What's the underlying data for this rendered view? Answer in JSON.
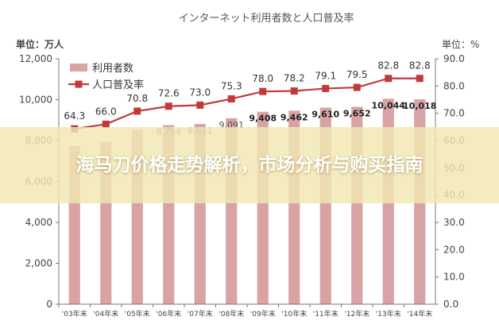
{
  "banner": {
    "text": "海马刀价格走势解析，市场分析与购买指南"
  },
  "chart_data": {
    "type": "bar",
    "title": "インターネット利用者数と人口普及率",
    "categories": [
      "'03年末",
      "'04年末",
      "'05年末",
      "'06年末",
      "'07年末",
      "'08年末",
      "'09年末",
      "'10年末",
      "'11年末",
      "'12年末",
      "'13年末",
      "'14年末"
    ],
    "ylabel_left": "単位：万人",
    "ylabel_right": "単位：%",
    "ylim_left": [
      0,
      12000
    ],
    "ylim_right": [
      0,
      90
    ],
    "yticks_left": [
      "0",
      "2,000",
      "4,000",
      "6,000",
      "8,000",
      "10,000",
      "12,000"
    ],
    "yticks_right": [
      "0.0",
      "10.0",
      "20.0",
      "30.0",
      "40.0",
      "50.0",
      "60.0",
      "70.0",
      "80.0",
      "90.0"
    ],
    "legend_position": "top-left",
    "grid": false,
    "series": [
      {
        "name": "利用者数",
        "type": "bar",
        "axis": "left",
        "color": "#d9a3a6",
        "values": [
          7730,
          7948,
          8529,
          8754,
          8811,
          9091,
          9408,
          9462,
          9610,
          9652,
          10044,
          10018
        ],
        "labels": [
          "",
          "",
          "",
          "8,754",
          "8,811",
          "9,091",
          "9,408",
          "9,462",
          "9,610",
          "9,652",
          "10,044",
          "10,018"
        ]
      },
      {
        "name": "人口普及率",
        "type": "line",
        "axis": "right",
        "color": "#c0393b",
        "values": [
          64.3,
          66.0,
          70.8,
          72.6,
          73.0,
          75.3,
          78.0,
          78.2,
          79.1,
          79.5,
          82.8,
          82.8
        ],
        "labels": [
          "64.3",
          "66.0",
          "70.8",
          "72.6",
          "73.0",
          "75.3",
          "78.0",
          "78.2",
          "79.1",
          "79.5",
          "82.8",
          "82.8"
        ]
      }
    ]
  }
}
